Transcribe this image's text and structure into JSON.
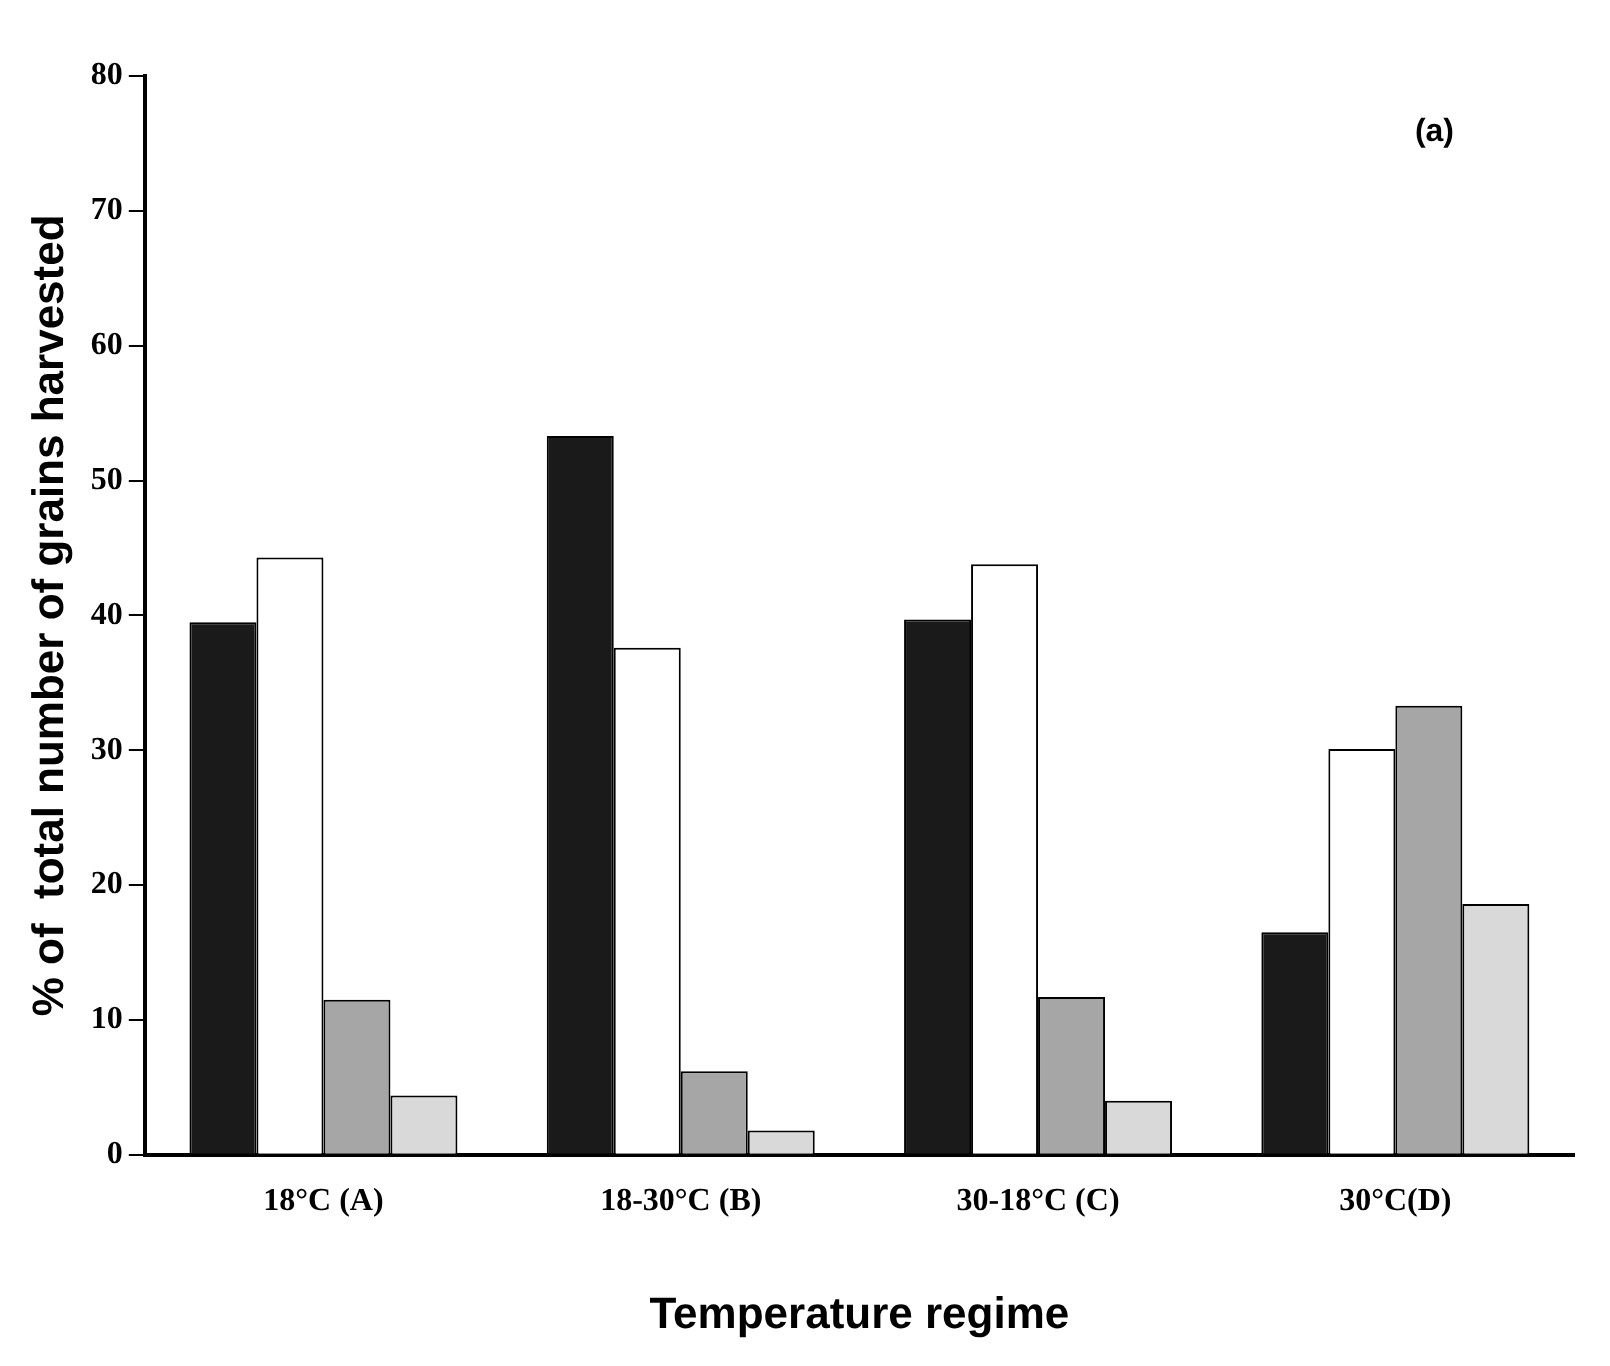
{
  "chart_data": {
    "type": "bar",
    "xlabel": "Temperature regime",
    "ylabel": "% of  total number of grains harvested",
    "annotations": [
      "(a)"
    ],
    "categories": [
      "18°C (A)",
      "18-30°C (B)",
      "30-18°C (C)",
      "30°C(D)"
    ],
    "series": [
      {
        "color": "#1a1a1a",
        "values": [
          39.5,
          53.3,
          39.7,
          16.5
        ]
      },
      {
        "color": "#ffffff",
        "values": [
          44.3,
          37.6,
          43.8,
          30.1
        ]
      },
      {
        "color": "#a6a6a6",
        "values": [
          11.5,
          6.2,
          11.7,
          33.3
        ]
      },
      {
        "color": "#d9d9d9",
        "values": [
          4.4,
          1.8,
          4.0,
          18.6
        ]
      }
    ],
    "ylim": [
      0,
      80
    ],
    "yticks": [
      0,
      10,
      20,
      30,
      40,
      50,
      60,
      70,
      80
    ],
    "grid": false,
    "legend": false
  }
}
